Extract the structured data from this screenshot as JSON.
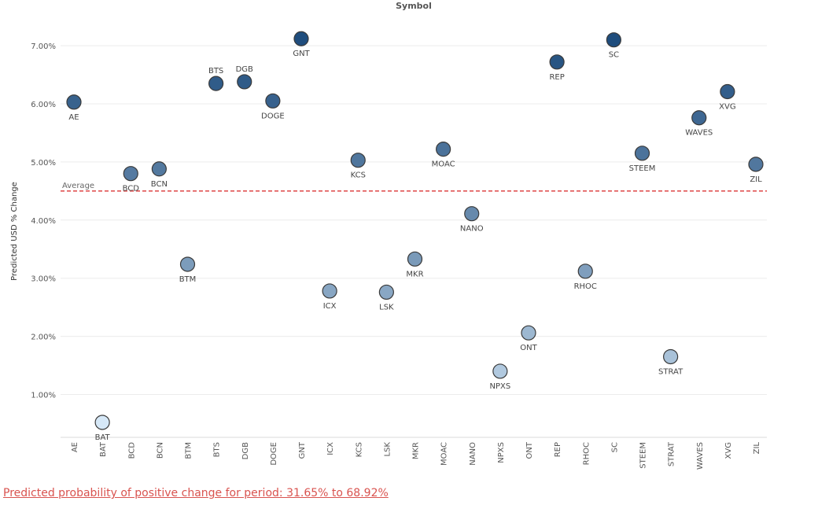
{
  "chart_data": {
    "type": "scatter",
    "title": "Symbol",
    "ylabel": "Predicted USD % Change",
    "ylim": [
      0.25,
      7.65
    ],
    "y_ticks": [
      "1.00%",
      "2.00%",
      "3.00%",
      "4.00%",
      "5.00%",
      "6.00%",
      "7.00%"
    ],
    "grid": true,
    "average": {
      "label": "Average",
      "value": 4.5,
      "color": "#e05555"
    },
    "categories": [
      "AE",
      "BAT",
      "BCD",
      "BCN",
      "BTM",
      "BTS",
      "DGB",
      "DOGE",
      "GNT",
      "ICX",
      "KCS",
      "LSK",
      "MKR",
      "MOAC",
      "NANO",
      "NPXS",
      "ONT",
      "REP",
      "RHOC",
      "SC",
      "STEEM",
      "STRAT",
      "WAVES",
      "XVG",
      "ZIL"
    ],
    "values": [
      6.03,
      0.52,
      4.8,
      4.88,
      3.24,
      6.35,
      6.38,
      6.05,
      7.12,
      2.78,
      5.03,
      2.76,
      3.33,
      5.22,
      4.11,
      1.4,
      2.06,
      6.72,
      3.12,
      7.1,
      5.15,
      1.65,
      5.76,
      6.21,
      4.96
    ],
    "point_labels": [
      "AE",
      "BAT",
      "BCD",
      "BCN",
      "BTM",
      "BTS",
      "DGB",
      "DOGE",
      "GNT",
      "ICX",
      "KCS",
      "LSK",
      "MKR",
      "MOAC",
      "NANO",
      "NPXS",
      "ONT",
      "REP",
      "RHOC",
      "SC",
      "STEEM",
      "STRAT",
      "WAVES",
      "XVG",
      "ZIL"
    ],
    "label_position": [
      "below",
      "below",
      "below",
      "below",
      "below",
      "above",
      "above",
      "below",
      "below",
      "below",
      "below",
      "below",
      "below",
      "below",
      "below",
      "below",
      "below",
      "below",
      "below",
      "below",
      "below",
      "below",
      "below",
      "below",
      "below"
    ],
    "color_scale": {
      "low": "#d6e8f7",
      "high": "#1f4d7d"
    }
  },
  "footer": {
    "text": "Predicted probability of positive change for period:  31.65% to 68.92%",
    "color": "#d9534f"
  }
}
